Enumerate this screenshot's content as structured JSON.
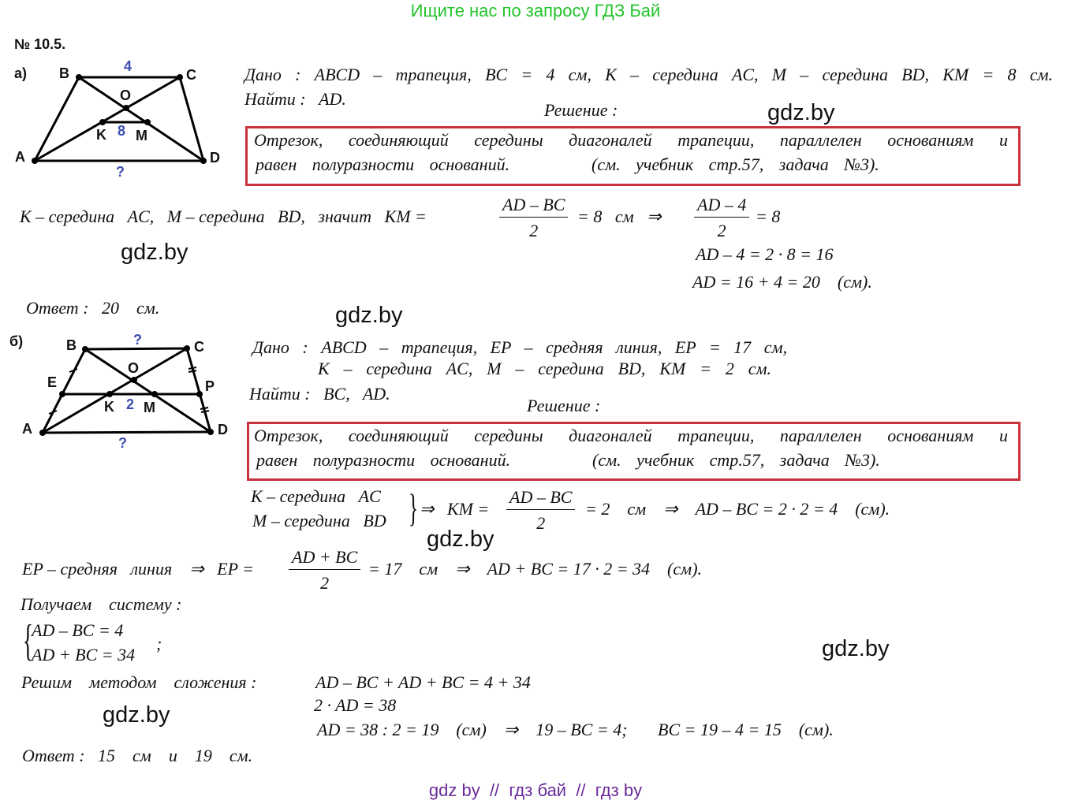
{
  "header": "Ищите нас по запросу ГДЗ Бай",
  "problem_number": "№ 10.5.",
  "watermark": "gdz.by",
  "footer": "gdz by  //  гдз бай  //  гдз by",
  "colors": {
    "header": "#22c42a",
    "box": "#c8323c",
    "figure_label": "#3b4bb0",
    "footer": "#6a2b9b"
  },
  "theorem": {
    "line1": "Отрезок, соединяющий середины диагоналей трапеции, параллелен основаниям и",
    "line2": "равен полуразности оснований.",
    "ref": "(см. учебник стр.57, задача №3)."
  },
  "part_a": {
    "label": "а)",
    "figure": {
      "B": "B",
      "C": "C",
      "A": "A",
      "D": "D",
      "O": "O",
      "K": "K",
      "M": "M",
      "bc": "4",
      "km": "8",
      "ad": "?"
    },
    "given": "Дано :  ABCD – трапеция,  BC = 4  см,  K – середина  AC,  M – середина  BD,  KM = 8  см.",
    "find": "Найти :   AD.",
    "solution": "Решение :",
    "step1": "K – середина   AC,   M – середина   BD,   значит   KM =",
    "frac1": {
      "num": "AD – BC",
      "den": "2"
    },
    "step1b": "= 8   см   ⇒",
    "frac2": {
      "num": "AD – 4",
      "den": "2"
    },
    "step1c": "= 8",
    "step2": "AD – 4 = 2 · 8 = 16",
    "step3": "AD = 16 + 4 = 20    (см).",
    "answer": "Ответ :   20    см."
  },
  "part_b": {
    "label": "б)",
    "figure": {
      "B": "B",
      "C": "C",
      "A": "A",
      "D": "D",
      "O": "O",
      "E": "E",
      "P": "P",
      "K": "K",
      "M": "M",
      "bc": "?",
      "km": "2",
      "ad": "?"
    },
    "given1": "Дано :  ABCD – трапеция,  EP – средняя  линия,  EP = 17  см,",
    "given2": "K – середина  AC,  M – середина  BD,  KM = 2  см.",
    "find": "Найти :   BC,   AD.",
    "solution": "Решение :",
    "k_mid": "K – середина   AC",
    "m_mid": "M – середина   BD",
    "s1a": "⇒   KM =",
    "frac1": {
      "num": "AD – BC",
      "den": "2"
    },
    "s1b": "= 2    см    ⇒    AD – BC = 2 · 2 = 4    (см).",
    "s2a": "EP – средняя   линия    ⇒   EP =",
    "frac2": {
      "num": "AD + BC",
      "den": "2"
    },
    "s2b": "= 17    см    ⇒    AD + BC = 17 · 2 = 34    (см).",
    "system_label": "Получаем    систему :",
    "sys1": "AD – BC = 4",
    "sys2": "AD + BC = 34",
    "semicolon": ";",
    "method": "Решим    методом    сложения :",
    "m1": "AD – BC + AD + BC = 4 + 34",
    "m2": "2 · AD = 38",
    "m3": "AD = 38 : 2 = 19    (см)    ⇒    19 – BC = 4;       BC = 19 – 4 = 15    (см).",
    "answer": "Ответ :   15    см    и    19    см."
  }
}
